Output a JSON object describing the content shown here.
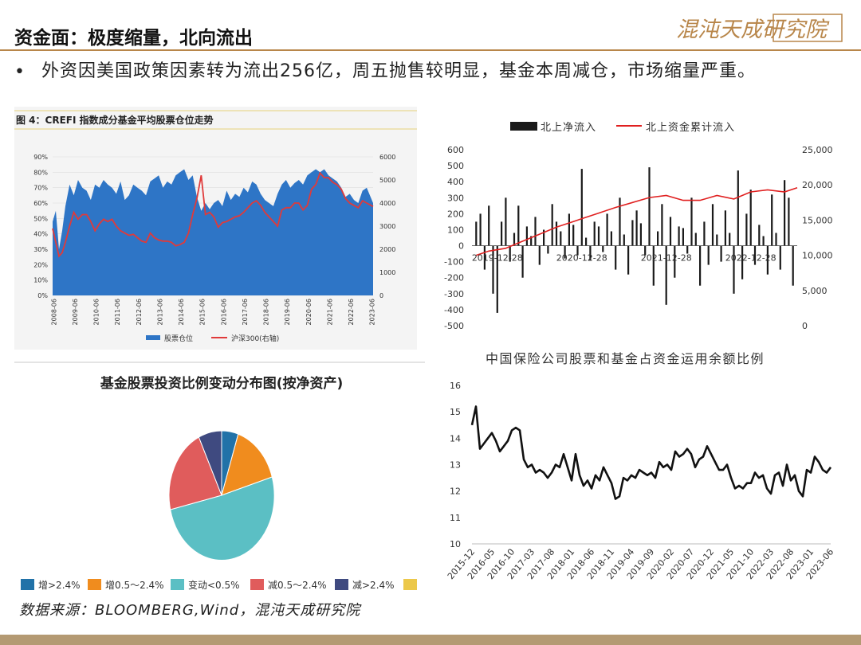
{
  "header": {
    "title": "资金面：极度缩量，北向流出",
    "logo_text": "混沌天成研究院",
    "accent": "#b8864a"
  },
  "bullet": {
    "text": "外资因美国政策因素转为流出256亿，周五抛售较明显，基金本周减仓，市场缩量严重。"
  },
  "source": "数据来源：BLOOMBERG,Wind，混沌天成研究院",
  "chart_data": [
    {
      "id": "crefi",
      "type": "area",
      "title": "图 4：CREFI 指数成分基金平均股票仓位走势",
      "x_ticks": [
        "2008-06",
        "2009-06",
        "2010-06",
        "2011-06",
        "2012-06",
        "2013-06",
        "2014-06",
        "2015-06",
        "2016-06",
        "2017-06",
        "2018-06",
        "2019-06",
        "2020-06",
        "2021-06",
        "2022-06",
        "2023-06"
      ],
      "y_left_ticks": [
        "0%",
        "10%",
        "20%",
        "30%",
        "40%",
        "50%",
        "60%",
        "70%",
        "80%",
        "90%"
      ],
      "y_right_ticks": [
        "0",
        "1000",
        "2000",
        "3000",
        "4000",
        "5000",
        "6000"
      ],
      "ylim_left": [
        0,
        90
      ],
      "ylim_right": [
        0,
        6000
      ],
      "colors": {
        "area": "#2e75c6",
        "line": "#e03a3a"
      },
      "series": [
        {
          "name": "股票仓位",
          "axis": "left",
          "x": [
            2008.4,
            2008.55,
            2008.7,
            2008.85,
            2009.0,
            2009.2,
            2009.4,
            2009.6,
            2009.8,
            2010.0,
            2010.2,
            2010.4,
            2010.6,
            2010.8,
            2011.0,
            2011.2,
            2011.4,
            2011.6,
            2011.8,
            2012.0,
            2012.2,
            2012.4,
            2012.6,
            2012.8,
            2013.0,
            2013.2,
            2013.4,
            2013.6,
            2013.8,
            2014.0,
            2014.2,
            2014.4,
            2014.6,
            2014.8,
            2015.0,
            2015.2,
            2015.4,
            2015.6,
            2015.8,
            2016.0,
            2016.2,
            2016.4,
            2016.6,
            2016.8,
            2017.0,
            2017.2,
            2017.4,
            2017.6,
            2017.8,
            2018.0,
            2018.2,
            2018.4,
            2018.6,
            2018.8,
            2019.0,
            2019.2,
            2019.4,
            2019.6,
            2019.8,
            2020.0,
            2020.2,
            2020.4,
            2020.6,
            2020.8,
            2021.0,
            2021.2,
            2021.4,
            2021.6,
            2021.8,
            2022.0,
            2022.2,
            2022.4,
            2022.6,
            2022.8,
            2023.0,
            2023.2,
            2023.5
          ],
          "values": [
            48,
            55,
            30,
            42,
            58,
            72,
            65,
            75,
            70,
            68,
            62,
            72,
            70,
            75,
            72,
            70,
            66,
            74,
            62,
            65,
            72,
            70,
            68,
            65,
            74,
            76,
            78,
            70,
            74,
            72,
            78,
            80,
            82,
            75,
            78,
            64,
            55,
            60,
            56,
            60,
            62,
            58,
            68,
            62,
            66,
            64,
            70,
            67,
            74,
            72,
            66,
            62,
            60,
            58,
            66,
            72,
            75,
            70,
            73,
            75,
            72,
            78,
            80,
            82,
            80,
            82,
            78,
            76,
            74,
            70,
            64,
            66,
            62,
            60,
            68,
            70,
            60
          ]
        },
        {
          "name": "沪深300(右轴)",
          "axis": "right",
          "x": [
            2008.4,
            2008.55,
            2008.7,
            2008.85,
            2009.0,
            2009.2,
            2009.4,
            2009.6,
            2009.8,
            2010.0,
            2010.2,
            2010.4,
            2010.6,
            2010.8,
            2011.0,
            2011.2,
            2011.4,
            2011.6,
            2011.8,
            2012.0,
            2012.2,
            2012.4,
            2012.6,
            2012.8,
            2013.0,
            2013.2,
            2013.4,
            2013.6,
            2013.8,
            2014.0,
            2014.2,
            2014.4,
            2014.6,
            2014.8,
            2015.0,
            2015.2,
            2015.4,
            2015.6,
            2015.8,
            2016.0,
            2016.2,
            2016.4,
            2016.6,
            2016.8,
            2017.0,
            2017.2,
            2017.4,
            2017.6,
            2017.8,
            2018.0,
            2018.2,
            2018.4,
            2018.6,
            2018.8,
            2019.0,
            2019.2,
            2019.4,
            2019.6,
            2019.8,
            2020.0,
            2020.2,
            2020.4,
            2020.6,
            2020.8,
            2021.0,
            2021.2,
            2021.4,
            2021.6,
            2021.8,
            2022.0,
            2022.2,
            2022.4,
            2022.6,
            2022.8,
            2023.0,
            2023.2,
            2023.5
          ],
          "values": [
            2900,
            2300,
            1700,
            1850,
            2300,
            3000,
            3600,
            3300,
            3500,
            3500,
            3200,
            2800,
            3100,
            3300,
            3200,
            3300,
            3000,
            2800,
            2700,
            2600,
            2650,
            2500,
            2350,
            2300,
            2700,
            2500,
            2400,
            2350,
            2350,
            2300,
            2150,
            2200,
            2300,
            2700,
            3500,
            4200,
            5200,
            3500,
            3600,
            3400,
            2950,
            3150,
            3200,
            3300,
            3400,
            3450,
            3600,
            3800,
            4000,
            4100,
            3900,
            3600,
            3400,
            3200,
            3000,
            3700,
            3800,
            3800,
            4000,
            4000,
            3700,
            3900,
            4600,
            4800,
            5300,
            5100,
            5100,
            4900,
            4800,
            4600,
            4200,
            4000,
            3900,
            3800,
            4100,
            4000,
            3850
          ]
        }
      ],
      "legend": [
        "股票仓位",
        "沪深300(右轴)"
      ],
      "legend_position": "bottom"
    },
    {
      "id": "northbound",
      "type": "bar",
      "legend": [
        "北上净流入",
        "北上资金累计流入"
      ],
      "legend_position": "top",
      "x_tick_labels": [
        "2019-12-28",
        "2020-12-28",
        "2021-12-28",
        "2022-12-28"
      ],
      "x_tick_positions": [
        2020.0,
        2021.0,
        2022.0,
        2023.0
      ],
      "xlim": [
        2019.7,
        2023.55
      ],
      "y_left_ticks": [
        "600",
        "500",
        "400",
        "300",
        "200",
        "100",
        "0",
        "-100",
        "-200",
        "-300",
        "-400",
        "-500"
      ],
      "y_right_ticks": [
        "25,000",
        "20,000",
        "15,000",
        "10,000",
        "5,000",
        "0"
      ],
      "ylim_left": [
        -500,
        600
      ],
      "ylim_right": [
        0,
        25000
      ],
      "colors": {
        "bars": "#1a1a1a",
        "line": "#e02020"
      },
      "series": [
        {
          "name": "北上净流入",
          "axis": "left",
          "x": [
            2019.75,
            2019.8,
            2019.85,
            2019.9,
            2019.95,
            2020.0,
            2020.05,
            2020.1,
            2020.15,
            2020.2,
            2020.25,
            2020.3,
            2020.35,
            2020.4,
            2020.45,
            2020.5,
            2020.55,
            2020.6,
            2020.65,
            2020.7,
            2020.75,
            2020.8,
            2020.85,
            2020.9,
            2020.95,
            2021.0,
            2021.05,
            2021.1,
            2021.15,
            2021.2,
            2021.25,
            2021.3,
            2021.35,
            2021.4,
            2021.45,
            2021.5,
            2021.55,
            2021.6,
            2021.65,
            2021.7,
            2021.75,
            2021.8,
            2021.85,
            2021.9,
            2021.95,
            2022.0,
            2022.05,
            2022.1,
            2022.15,
            2022.2,
            2022.25,
            2022.3,
            2022.35,
            2022.4,
            2022.45,
            2022.5,
            2022.55,
            2022.6,
            2022.65,
            2022.7,
            2022.75,
            2022.8,
            2022.85,
            2022.9,
            2022.95,
            2023.0,
            2023.05,
            2023.1,
            2023.15,
            2023.2,
            2023.25,
            2023.3,
            2023.35,
            2023.4,
            2023.45,
            2023.5
          ],
          "values": [
            150,
            200,
            -150,
            250,
            -300,
            -420,
            150,
            300,
            -100,
            80,
            250,
            -200,
            120,
            60,
            180,
            -120,
            100,
            -50,
            260,
            150,
            90,
            -80,
            200,
            130,
            -60,
            480,
            50,
            -90,
            150,
            120,
            -40,
            200,
            90,
            -150,
            300,
            70,
            -180,
            160,
            220,
            140,
            -60,
            490,
            -250,
            90,
            260,
            -370,
            180,
            -200,
            120,
            110,
            -50,
            300,
            80,
            -250,
            150,
            -120,
            260,
            70,
            -100,
            220,
            80,
            -300,
            470,
            -210,
            200,
            350,
            -120,
            130,
            60,
            -180,
            320,
            80,
            -150,
            410,
            300,
            -250
          ]
        },
        {
          "name": "北上资金累计流入",
          "axis": "right",
          "x": [
            2019.75,
            2019.9,
            2020.1,
            2020.3,
            2020.5,
            2020.7,
            2020.9,
            2021.0,
            2021.2,
            2021.4,
            2021.6,
            2021.8,
            2022.0,
            2022.2,
            2022.4,
            2022.6,
            2022.8,
            2023.0,
            2023.2,
            2023.4,
            2023.55
          ],
          "values": [
            10000,
            10600,
            11000,
            12000,
            13000,
            14000,
            14800,
            15200,
            16000,
            16800,
            17500,
            18200,
            18500,
            17800,
            17800,
            18500,
            18000,
            19000,
            19300,
            19000,
            19600
          ]
        }
      ]
    },
    {
      "id": "insurance",
      "type": "line",
      "title": "中国保险公司股票和基金占资金运用余额比例",
      "x_tick_labels": [
        "2015-12",
        "2016-05",
        "2016-10",
        "2017-03",
        "2017-08",
        "2018-01",
        "2018-06",
        "2018-11",
        "2019-04",
        "2019-09",
        "2020-02",
        "2020-07",
        "2020-12",
        "2021-05",
        "2021-10",
        "2022-03",
        "2022-08",
        "2023-01",
        "2023-06"
      ],
      "y_ticks": [
        "16",
        "15",
        "14",
        "13",
        "12",
        "11",
        "10"
      ],
      "ylim": [
        10,
        16
      ],
      "colors": {
        "line": "#111111"
      },
      "series": [
        {
          "name": "",
          "x_months": [
            0,
            1,
            2,
            3,
            4,
            5,
            6,
            7,
            8,
            9,
            10,
            11,
            12,
            13,
            14,
            15,
            16,
            17,
            18,
            19,
            20,
            21,
            22,
            23,
            24,
            25,
            26,
            27,
            28,
            29,
            30,
            31,
            32,
            33,
            34,
            35,
            36,
            37,
            38,
            39,
            40,
            41,
            42,
            43,
            44,
            45,
            46,
            47,
            48,
            49,
            50,
            51,
            52,
            53,
            54,
            55,
            56,
            57,
            58,
            59,
            60,
            61,
            62,
            63,
            64,
            65,
            66,
            67,
            68,
            69,
            70,
            71,
            72,
            73,
            74,
            75,
            76,
            77,
            78,
            79,
            80,
            81,
            82,
            83,
            84,
            85,
            86,
            87,
            88,
            89,
            90
          ],
          "values": [
            14.5,
            15.2,
            13.6,
            13.8,
            14.0,
            14.2,
            13.9,
            13.5,
            13.7,
            13.9,
            14.3,
            14.4,
            14.3,
            13.2,
            12.9,
            13.0,
            12.7,
            12.8,
            12.7,
            12.5,
            12.7,
            13.0,
            12.9,
            13.4,
            12.9,
            12.4,
            13.4,
            12.6,
            12.2,
            12.4,
            12.1,
            12.6,
            12.4,
            12.9,
            12.6,
            12.3,
            11.7,
            11.8,
            12.5,
            12.4,
            12.6,
            12.5,
            12.8,
            12.7,
            12.6,
            12.7,
            12.5,
            13.1,
            12.9,
            13.0,
            12.8,
            13.5,
            13.3,
            13.4,
            13.6,
            13.4,
            12.9,
            13.2,
            13.3,
            13.7,
            13.4,
            13.1,
            12.8,
            12.8,
            13.0,
            12.5,
            12.1,
            12.2,
            12.1,
            12.3,
            12.3,
            12.7,
            12.5,
            12.6,
            12.1,
            11.9,
            12.6,
            12.7,
            12.2,
            13.0,
            12.4,
            12.6,
            12.0,
            11.8,
            12.8,
            12.7,
            13.3,
            13.1,
            12.8,
            12.7,
            12.9
          ]
        }
      ]
    },
    {
      "id": "fund-dist",
      "type": "pie",
      "title": "基金股票投资比例变动分布图(按净资产)",
      "categories": [
        "增>2.4%",
        "增0.5～2.4%",
        "变动<0.5%",
        "减0.5～2.4%",
        "减>2.4%",
        ""
      ],
      "values": [
        5,
        15,
        50,
        21,
        7,
        0
      ],
      "colors": [
        "#2172a8",
        "#f08c1e",
        "#5bbfc4",
        "#e05c5c",
        "#3f4a80",
        "#ecc84a"
      ],
      "legend_position": "bottom"
    }
  ]
}
